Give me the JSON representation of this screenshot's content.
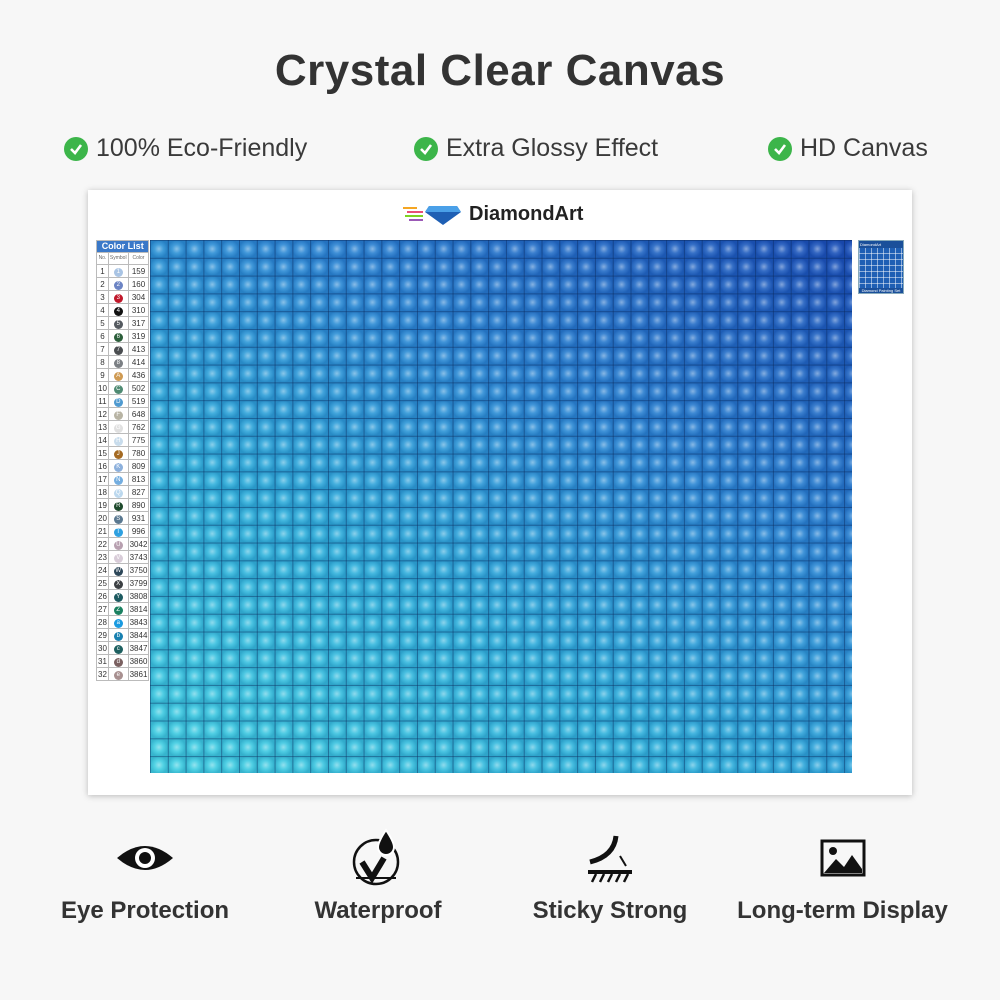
{
  "title": "Crystal Clear Canvas",
  "features": [
    "100% Eco-Friendly",
    "Extra Glossy Effect",
    "HD Canvas"
  ],
  "canvas": {
    "logo_text": "DiamondArt",
    "color_list": {
      "title": "Color List",
      "headers": [
        "No.",
        "Symbol",
        "Color"
      ],
      "rows": [
        {
          "no": "1",
          "sym": "1",
          "code": "159",
          "color": "#a9c4e4"
        },
        {
          "no": "2",
          "sym": "2",
          "code": "160",
          "color": "#6c84c4"
        },
        {
          "no": "3",
          "sym": "3",
          "code": "304",
          "color": "#c0182a"
        },
        {
          "no": "4",
          "sym": "4",
          "code": "310",
          "color": "#111111"
        },
        {
          "no": "5",
          "sym": "5",
          "code": "317",
          "color": "#555a60"
        },
        {
          "no": "6",
          "sym": "6",
          "code": "319",
          "color": "#2b5e3a"
        },
        {
          "no": "7",
          "sym": "7",
          "code": "413",
          "color": "#4a4d50"
        },
        {
          "no": "8",
          "sym": "8",
          "code": "414",
          "color": "#7b7f84"
        },
        {
          "no": "9",
          "sym": "A",
          "code": "436",
          "color": "#cf9a52"
        },
        {
          "no": "10",
          "sym": "C",
          "code": "502",
          "color": "#4e8a72"
        },
        {
          "no": "11",
          "sym": "D",
          "code": "519",
          "color": "#4f9ad0"
        },
        {
          "no": "12",
          "sym": "F",
          "code": "648",
          "color": "#b8b4a4"
        },
        {
          "no": "13",
          "sym": "G",
          "code": "762",
          "color": "#e0e0e0"
        },
        {
          "no": "14",
          "sym": "H",
          "code": "775",
          "color": "#c8dcec"
        },
        {
          "no": "15",
          "sym": "J",
          "code": "780",
          "color": "#a46a22"
        },
        {
          "no": "16",
          "sym": "K",
          "code": "809",
          "color": "#8cb0dc"
        },
        {
          "no": "17",
          "sym": "N",
          "code": "813",
          "color": "#74aee0"
        },
        {
          "no": "18",
          "sym": "Q",
          "code": "827",
          "color": "#bcd8ee"
        },
        {
          "no": "19",
          "sym": "R",
          "code": "890",
          "color": "#1e4a2c"
        },
        {
          "no": "20",
          "sym": "S",
          "code": "931",
          "color": "#5a7890"
        },
        {
          "no": "21",
          "sym": "T",
          "code": "996",
          "color": "#2ea0e0"
        },
        {
          "no": "22",
          "sym": "U",
          "code": "3042",
          "color": "#b8a0b0"
        },
        {
          "no": "23",
          "sym": "V",
          "code": "3743",
          "color": "#d8ccd8"
        },
        {
          "no": "24",
          "sym": "W",
          "code": "3750",
          "color": "#2c4658"
        },
        {
          "no": "25",
          "sym": "X",
          "code": "3799",
          "color": "#3c4044"
        },
        {
          "no": "26",
          "sym": "Y",
          "code": "3808",
          "color": "#1c5a60"
        },
        {
          "no": "27",
          "sym": "Z",
          "code": "3814",
          "color": "#1a8060"
        },
        {
          "no": "28",
          "sym": "a",
          "code": "3843",
          "color": "#1a9ae0"
        },
        {
          "no": "29",
          "sym": "b",
          "code": "3844",
          "color": "#1880b0"
        },
        {
          "no": "30",
          "sym": "c",
          "code": "3847",
          "color": "#1e6060"
        },
        {
          "no": "31",
          "sym": "d",
          "code": "3860",
          "color": "#7a6060"
        },
        {
          "no": "32",
          "sym": "e",
          "code": "3861",
          "color": "#a89090"
        }
      ]
    },
    "thumbnail_title": "DiamondArt",
    "thumbnail_caption": "Diamond Painting Set"
  },
  "bottom_features": [
    {
      "icon": "eye-icon",
      "label": "Eye Protection"
    },
    {
      "icon": "waterproof-icon",
      "label": "Waterproof"
    },
    {
      "icon": "sticky-icon",
      "label": "Sticky Strong"
    },
    {
      "icon": "image-icon",
      "label": "Long-term Display"
    }
  ],
  "colors": {
    "check": "#3cb54a",
    "table_header": "#3a78c8",
    "grid_light": "#3fd0e2",
    "grid_dark": "#1a4fb8"
  }
}
